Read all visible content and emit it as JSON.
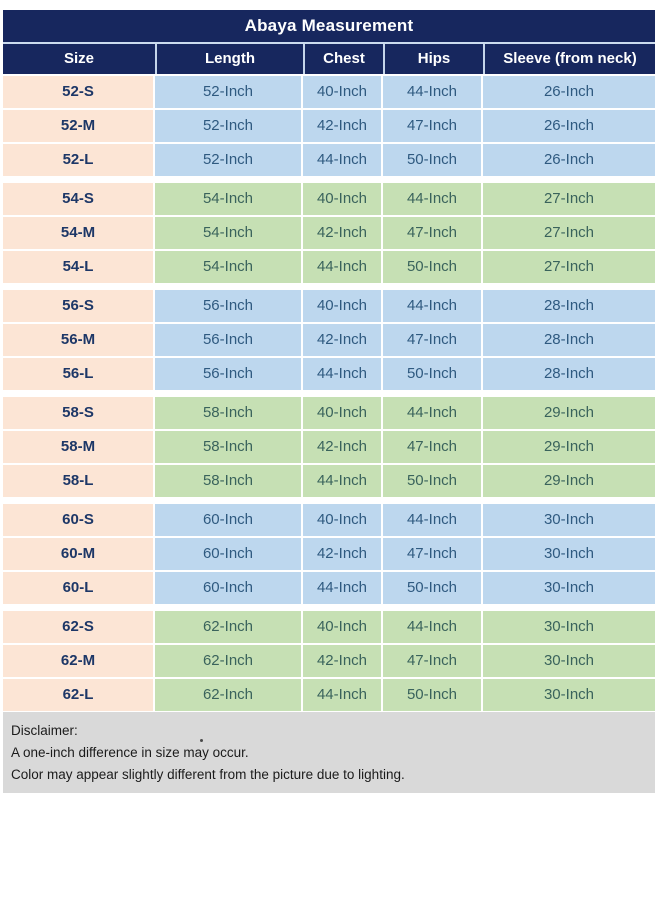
{
  "table": {
    "title": "Abaya Measurement",
    "columns": [
      "Size",
      "Length",
      "Chest",
      "Hips",
      "Sleeve (from neck)"
    ],
    "groups": [
      {
        "tint": "blue",
        "rows": [
          [
            "52-S",
            "52-Inch",
            "40-Inch",
            "44-Inch",
            "26-Inch"
          ],
          [
            "52-M",
            "52-Inch",
            "42-Inch",
            "47-Inch",
            "26-Inch"
          ],
          [
            "52-L",
            "52-Inch",
            "44-Inch",
            "50-Inch",
            "26-Inch"
          ]
        ]
      },
      {
        "tint": "green",
        "rows": [
          [
            "54-S",
            "54-Inch",
            "40-Inch",
            "44-Inch",
            "27-Inch"
          ],
          [
            "54-M",
            "54-Inch",
            "42-Inch",
            "47-Inch",
            "27-Inch"
          ],
          [
            "54-L",
            "54-Inch",
            "44-Inch",
            "50-Inch",
            "27-Inch"
          ]
        ]
      },
      {
        "tint": "blue",
        "rows": [
          [
            "56-S",
            "56-Inch",
            "40-Inch",
            "44-Inch",
            "28-Inch"
          ],
          [
            "56-M",
            "56-Inch",
            "42-Inch",
            "47-Inch",
            "28-Inch"
          ],
          [
            "56-L",
            "56-Inch",
            "44-Inch",
            "50-Inch",
            "28-Inch"
          ]
        ]
      },
      {
        "tint": "green",
        "rows": [
          [
            "58-S",
            "58-Inch",
            "40-Inch",
            "44-Inch",
            "29-Inch"
          ],
          [
            "58-M",
            "58-Inch",
            "42-Inch",
            "47-Inch",
            "29-Inch"
          ],
          [
            "58-L",
            "58-Inch",
            "44-Inch",
            "50-Inch",
            "29-Inch"
          ]
        ]
      },
      {
        "tint": "blue",
        "rows": [
          [
            "60-S",
            "60-Inch",
            "40-Inch",
            "44-Inch",
            "30-Inch"
          ],
          [
            "60-M",
            "60-Inch",
            "42-Inch",
            "47-Inch",
            "30-Inch"
          ],
          [
            "60-L",
            "60-Inch",
            "44-Inch",
            "50-Inch",
            "30-Inch"
          ]
        ]
      },
      {
        "tint": "green",
        "rows": [
          [
            "62-S",
            "62-Inch",
            "40-Inch",
            "44-Inch",
            "30-Inch"
          ],
          [
            "62-M",
            "62-Inch",
            "42-Inch",
            "47-Inch",
            "30-Inch"
          ],
          [
            "62-L",
            "62-Inch",
            "44-Inch",
            "50-Inch",
            "30-Inch"
          ]
        ]
      }
    ]
  },
  "disclaimer": {
    "heading": "Disclaimer:",
    "lines": [
      "A one-inch difference in size may occur.",
      "Color may appear slightly different from the picture due to lighting."
    ]
  },
  "colors": {
    "header_navy": "#17275e",
    "size_column_peach": "#fce5d5",
    "group_blue": "#bdd7ee",
    "group_green": "#c6e0b4",
    "disclaimer_gray": "#d9d9d9",
    "header_text": "#ffffff",
    "size_text_navy": "#1d3767",
    "blue_cell_text": "#2f5a80",
    "green_cell_text": "#3a635c"
  }
}
